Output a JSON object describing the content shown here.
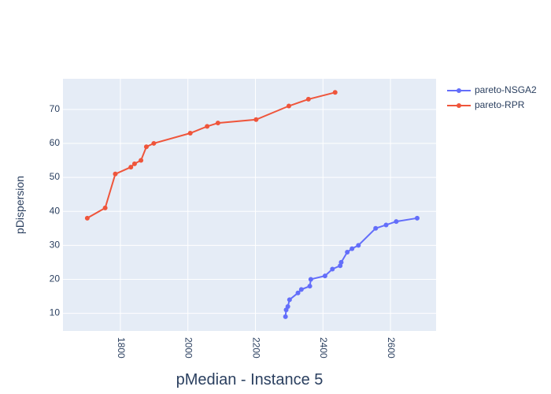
{
  "chart_data": {
    "type": "line",
    "xlabel": "pMedian - Instance 5",
    "ylabel": "pDispersion",
    "xlim": [
      1630,
      2735
    ],
    "ylim": [
      4.8,
      79
    ],
    "x_ticks": [
      1800,
      2000,
      2200,
      2400,
      2600
    ],
    "y_ticks": [
      10,
      20,
      30,
      40,
      50,
      60,
      70
    ],
    "grid": true,
    "legend_position": "top-right",
    "series": [
      {
        "name": "pareto-NSGA2",
        "color": "#636efa",
        "points": [
          [
            2289,
            9
          ],
          [
            2291,
            11
          ],
          [
            2296,
            12
          ],
          [
            2301,
            14
          ],
          [
            2326,
            16
          ],
          [
            2336,
            17
          ],
          [
            2361,
            18
          ],
          [
            2364,
            20
          ],
          [
            2406,
            21
          ],
          [
            2428,
            23
          ],
          [
            2451,
            24
          ],
          [
            2454,
            25
          ],
          [
            2472,
            28
          ],
          [
            2486,
            29
          ],
          [
            2505,
            30
          ],
          [
            2556,
            35
          ],
          [
            2587,
            36
          ],
          [
            2617,
            37
          ],
          [
            2679,
            38
          ]
        ]
      },
      {
        "name": "pareto-RPR",
        "color": "#ef553b",
        "points": [
          [
            1702,
            38
          ],
          [
            1755,
            41
          ],
          [
            1785,
            51
          ],
          [
            1831,
            53
          ],
          [
            1842,
            54
          ],
          [
            1861,
            55
          ],
          [
            1877,
            59
          ],
          [
            1899,
            60
          ],
          [
            2007,
            63
          ],
          [
            2057,
            65
          ],
          [
            2089,
            66
          ],
          [
            2202,
            67
          ],
          [
            2299,
            71
          ],
          [
            2357,
            73
          ],
          [
            2436,
            75
          ]
        ]
      }
    ]
  },
  "colors": {
    "plot_bg": "#e5ecf6",
    "grid": "#ffffff",
    "text": "#2a3f5f"
  }
}
